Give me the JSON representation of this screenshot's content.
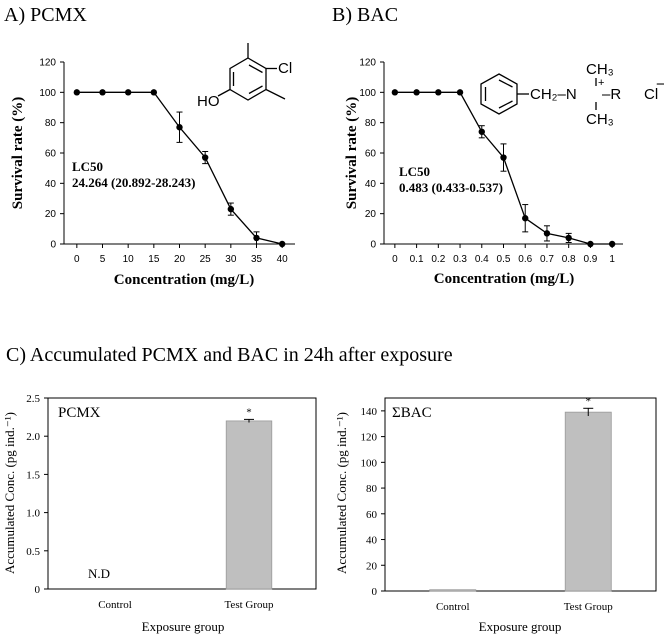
{
  "panels": {
    "a_title": "A) PCMX",
    "b_title": "B) BAC",
    "c_title": "C) Accumulated PCMX and BAC in 24h after exposure"
  },
  "annotations": {
    "a_lc50_label": "LC50",
    "a_lc50_value": "24.264 (20.892-28.243)",
    "b_lc50_label": "LC50",
    "b_lc50_value": "0.483 (0.433-0.537)",
    "c_nd": "N.D",
    "c1_star": "*",
    "c2_star": "*",
    "c1_inner_label": "PCMX",
    "c2_inner_label": "ΣBAC"
  },
  "structures": {
    "pcmx": {
      "ho": "HO",
      "cl": "Cl"
    },
    "bac": {
      "ch2n": "CH₂–N",
      "ch3_top": "CH₃",
      "ch3_bottom": "CH₃",
      "r": "–R",
      "plus": "+",
      "cl": "Cl",
      "minus": "−"
    }
  },
  "chart_data": [
    {
      "id": "A",
      "type": "line",
      "title": "A) PCMX",
      "xlabel": "Concentration (mg/L)",
      "ylabel": "Survival rate (%)",
      "x": [
        0,
        5,
        10,
        15,
        20,
        25,
        30,
        35,
        40
      ],
      "xticks": [
        "0",
        "5",
        "10",
        "15",
        "20",
        "25",
        "30",
        "35",
        "40"
      ],
      "xlim": [
        -2.5,
        42.5
      ],
      "yticks": [
        "0",
        "20",
        "40",
        "60",
        "80",
        "100",
        "120"
      ],
      "ylim": [
        0,
        120
      ],
      "series": [
        {
          "values": [
            100,
            100,
            100,
            100,
            77,
            57,
            23,
            4,
            0
          ],
          "errors": [
            0,
            0,
            0,
            0,
            10,
            4,
            4,
            4,
            0
          ]
        }
      ],
      "color": "#000000"
    },
    {
      "id": "B",
      "type": "line",
      "title": "B) BAC",
      "xlabel": "Concentration (mg/L)",
      "ylabel": "Survival rate (%)",
      "x": [
        0,
        0.1,
        0.2,
        0.3,
        0.4,
        0.5,
        0.6,
        0.7,
        0.8,
        0.9,
        1
      ],
      "xticks": [
        "0",
        "0.1",
        "0.2",
        "0.3",
        "0.4",
        "0.5",
        "0.6",
        "0.7",
        "0.8",
        "0.9",
        "1"
      ],
      "xlim": [
        -0.05,
        1.05
      ],
      "yticks": [
        "0",
        "20",
        "40",
        "60",
        "80",
        "100",
        "120"
      ],
      "ylim": [
        0,
        120
      ],
      "series": [
        {
          "values": [
            100,
            100,
            100,
            100,
            74,
            57,
            17,
            7,
            4,
            0,
            0
          ],
          "errors": [
            0,
            0,
            0,
            0,
            4,
            9,
            9,
            5,
            3,
            0,
            0
          ]
        }
      ],
      "color": "#000000"
    },
    {
      "id": "C1",
      "type": "bar",
      "xlabel": "Exposure group",
      "ylabel": "Accumulated Conc. (pg ind.⁻¹)",
      "categories": [
        "Control",
        "Test Group"
      ],
      "values": [
        0,
        2.2
      ],
      "errors": [
        0,
        0.02
      ],
      "yticks": [
        "0",
        "0.5",
        "1.0",
        "1.5",
        "2.0",
        "2.5"
      ],
      "ylim": [
        0,
        2.5
      ],
      "bar_color": "#bfbfbf"
    },
    {
      "id": "C2",
      "type": "bar",
      "xlabel": "Exposure group",
      "ylabel": "Accumulated Conc. (pg ind.⁻¹)",
      "categories": [
        "Control",
        "Test Group"
      ],
      "values": [
        1,
        139
      ],
      "errors": [
        0,
        3
      ],
      "yticks": [
        "0",
        "20",
        "40",
        "60",
        "80",
        "100",
        "120",
        "140"
      ],
      "ylim": [
        0,
        150
      ],
      "bar_color": "#bfbfbf"
    }
  ]
}
